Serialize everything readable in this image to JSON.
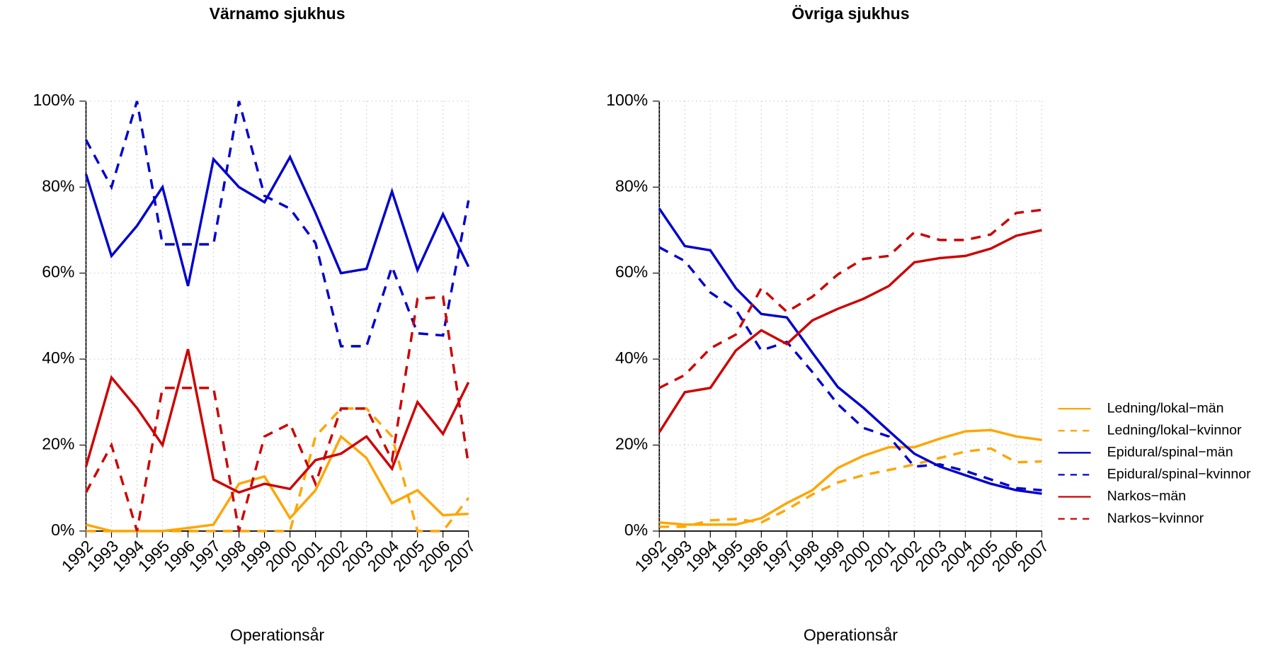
{
  "chart_data": [
    {
      "type": "line",
      "title": "Värnamo sjukhus",
      "x_label": "Operationsår",
      "categories": [
        "1992",
        "1993",
        "1994",
        "1995",
        "1996",
        "1997",
        "1998",
        "1999",
        "2000",
        "2001",
        "2002",
        "2003",
        "2004",
        "2005",
        "2006",
        "2007"
      ],
      "ylim": [
        0,
        100
      ],
      "yticks": [
        {
          "value": 0,
          "label": "0%"
        },
        {
          "value": 20,
          "label": "20%"
        },
        {
          "value": 40,
          "label": "40%"
        },
        {
          "value": 60,
          "label": "60%"
        },
        {
          "value": 80,
          "label": "80%"
        },
        {
          "value": 100,
          "label": "100%"
        }
      ],
      "grid": true,
      "legend": false,
      "series": [
        {
          "name": "Ledning/lokal−män",
          "color": "#FFA500",
          "linestyle": "solid",
          "values": [
            1.5,
            0,
            0,
            0,
            0.7,
            1.5,
            11,
            12.7,
            3,
            9.5,
            22,
            17,
            6.5,
            9.5,
            3.7,
            4
          ]
        },
        {
          "name": "Ledning/lokal−kvinnor",
          "color": "#FFA500",
          "linestyle": "dashed",
          "values": [
            0,
            0,
            0,
            0,
            0,
            0,
            0,
            0,
            0,
            22,
            28.5,
            28.5,
            22,
            0,
            0,
            7.7
          ]
        },
        {
          "name": "Epidural/spinal−män",
          "color": "#0000CD",
          "linestyle": "solid",
          "values": [
            83,
            64,
            71,
            80,
            57,
            86.5,
            80,
            76.5,
            87,
            74,
            60,
            61,
            79,
            60.7,
            73.7,
            61.5
          ]
        },
        {
          "name": "Epidural/spinal−kvinnor",
          "color": "#0000CD",
          "linestyle": "dashed",
          "values": [
            91,
            80,
            100,
            66.7,
            66.7,
            66.7,
            100,
            78,
            75,
            67,
            43,
            43,
            61.5,
            46,
            45.5,
            76.9
          ]
        },
        {
          "name": "Narkos−män",
          "color": "#CD0000",
          "linestyle": "solid",
          "values": [
            15,
            35.7,
            28.6,
            20,
            42.3,
            12,
            9,
            11,
            9.8,
            16.5,
            18,
            22,
            14.5,
            30,
            22.6,
            34.6
          ]
        },
        {
          "name": "Narkos−kvinnor",
          "color": "#CD0000",
          "linestyle": "dashed",
          "values": [
            9,
            20,
            0,
            33.3,
            33.3,
            33.3,
            0,
            22,
            25,
            11,
            28.5,
            28.5,
            16.5,
            54,
            54.5,
            15.4
          ]
        }
      ]
    },
    {
      "type": "line",
      "title": "Övriga sjukhus",
      "x_label": "Operationsår",
      "categories": [
        "1992",
        "1993",
        "1994",
        "1995",
        "1996",
        "1997",
        "1998",
        "1999",
        "2000",
        "2001",
        "2002",
        "2003",
        "2004",
        "2005",
        "2006",
        "2007"
      ],
      "ylim": [
        0,
        100
      ],
      "yticks": [
        {
          "value": 0,
          "label": "0%"
        },
        {
          "value": 20,
          "label": "20%"
        },
        {
          "value": 40,
          "label": "40%"
        },
        {
          "value": 60,
          "label": "60%"
        },
        {
          "value": 80,
          "label": "80%"
        },
        {
          "value": 100,
          "label": "100%"
        }
      ],
      "grid": true,
      "legend": "right",
      "series": [
        {
          "name": "Ledning/lokal−män",
          "color": "#FFA500",
          "linestyle": "solid",
          "values": [
            2,
            1.5,
            1.5,
            1.5,
            3,
            6.5,
            9.5,
            14.7,
            17.5,
            19.5,
            19.5,
            21.5,
            23.2,
            23.5,
            22,
            21.2
          ]
        },
        {
          "name": "Ledning/lokal−kvinnor",
          "color": "#FFA500",
          "linestyle": "dashed",
          "values": [
            1,
            1,
            2.5,
            2.8,
            2,
            5,
            8.5,
            11.3,
            13,
            14.2,
            15.5,
            17,
            18.5,
            19.2,
            16,
            16.2
          ]
        },
        {
          "name": "Epidural/spinal−män",
          "color": "#0000CD",
          "linestyle": "solid",
          "values": [
            75,
            66.3,
            65.3,
            56.5,
            50.5,
            49.7,
            41.5,
            33.5,
            28.7,
            23.3,
            18,
            15,
            13,
            11,
            9.5,
            8.7
          ]
        },
        {
          "name": "Epidural/spinal−kvinnor",
          "color": "#0000CD",
          "linestyle": "dashed",
          "values": [
            66,
            62.8,
            55.5,
            51.5,
            42,
            44,
            37,
            29.5,
            24,
            22,
            15,
            15.5,
            14,
            12,
            10,
            9.5
          ]
        },
        {
          "name": "Narkos−män",
          "color": "#CD0000",
          "linestyle": "solid",
          "values": [
            23,
            32.3,
            33.3,
            42,
            46.7,
            43.5,
            49,
            51.7,
            54,
            57,
            62.5,
            63.5,
            64,
            65.7,
            68.7,
            70
          ]
        },
        {
          "name": "Narkos−kvinnor",
          "color": "#CD0000",
          "linestyle": "dashed",
          "values": [
            33.3,
            36.3,
            42.5,
            45.7,
            56.5,
            51,
            54.5,
            59.7,
            63.3,
            64,
            69.5,
            67.7,
            67.7,
            69,
            74,
            74.7
          ]
        }
      ]
    }
  ]
}
